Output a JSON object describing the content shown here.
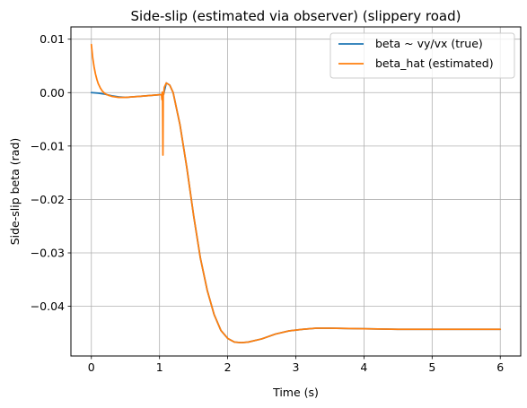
{
  "chart_data": {
    "type": "line",
    "title": "Side-slip (estimated via observer) (slippery road)",
    "xlabel": "Time (s)",
    "ylabel": "Side-slip beta (rad)",
    "xlim": [
      -0.3,
      6.3
    ],
    "ylim": [
      -0.0493,
      0.0123
    ],
    "x_ticks": [
      0,
      1,
      2,
      3,
      4,
      5,
      6
    ],
    "y_ticks": [
      0.01,
      0.0,
      -0.01,
      -0.02,
      -0.03,
      -0.04
    ],
    "x_tick_labels": [
      "0",
      "1",
      "2",
      "3",
      "4",
      "5",
      "6"
    ],
    "y_tick_labels": [
      "0.01",
      "0.00",
      "−0.01",
      "−0.02",
      "−0.03",
      "−0.04"
    ],
    "grid": true,
    "legend_position": "upper-right",
    "series": [
      {
        "name": "beta ~ vy/vx (true)",
        "color": "#1f77b4",
        "points": [
          [
            0.0,
            0.0
          ],
          [
            0.1,
            -0.0001
          ],
          [
            0.2,
            -0.0003
          ],
          [
            0.3,
            -0.0006
          ],
          [
            0.4,
            -0.0008
          ],
          [
            0.5,
            -0.0009
          ],
          [
            0.6,
            -0.0008
          ],
          [
            0.7,
            -0.0007
          ],
          [
            0.8,
            -0.0006
          ],
          [
            0.9,
            -0.0005
          ],
          [
            1.0,
            -0.0004
          ],
          [
            1.04,
            -0.0004
          ],
          [
            1.06,
            -0.0003
          ],
          [
            1.1,
            0.0018
          ],
          [
            1.15,
            0.0014
          ],
          [
            1.2,
            0.0
          ],
          [
            1.3,
            -0.006
          ],
          [
            1.4,
            -0.014
          ],
          [
            1.5,
            -0.023
          ],
          [
            1.6,
            -0.031
          ],
          [
            1.7,
            -0.037
          ],
          [
            1.8,
            -0.0415
          ],
          [
            1.9,
            -0.0445
          ],
          [
            2.0,
            -0.046
          ],
          [
            2.1,
            -0.0467
          ],
          [
            2.2,
            -0.0468
          ],
          [
            2.3,
            -0.0467
          ],
          [
            2.5,
            -0.0461
          ],
          [
            2.7,
            -0.0452
          ],
          [
            2.9,
            -0.0446
          ],
          [
            3.1,
            -0.0443
          ],
          [
            3.3,
            -0.0441
          ],
          [
            3.5,
            -0.0441
          ],
          [
            4.0,
            -0.0442
          ],
          [
            4.5,
            -0.0443
          ],
          [
            5.0,
            -0.0443
          ],
          [
            5.5,
            -0.0443
          ],
          [
            6.0,
            -0.0443
          ]
        ]
      },
      {
        "name": "beta_hat (estimated)",
        "color": "#ff7f0e",
        "points": [
          [
            0.0,
            0.009
          ],
          [
            0.02,
            0.0065
          ],
          [
            0.04,
            0.0048
          ],
          [
            0.06,
            0.0035
          ],
          [
            0.08,
            0.0025
          ],
          [
            0.1,
            0.0017
          ],
          [
            0.13,
            0.0009
          ],
          [
            0.16,
            0.0003
          ],
          [
            0.2,
            -0.0002
          ],
          [
            0.25,
            -0.0005
          ],
          [
            0.3,
            -0.0007
          ],
          [
            0.4,
            -0.0009
          ],
          [
            0.5,
            -0.0009
          ],
          [
            0.6,
            -0.0008
          ],
          [
            0.7,
            -0.0007
          ],
          [
            0.8,
            -0.0006
          ],
          [
            0.9,
            -0.0005
          ],
          [
            1.0,
            -0.0004
          ],
          [
            1.03,
            -0.0004
          ],
          [
            1.035,
            -0.0013
          ],
          [
            1.04,
            0.0001
          ],
          [
            1.045,
            -0.0016
          ],
          [
            1.05,
            -0.0117
          ],
          [
            1.055,
            0.0
          ],
          [
            1.06,
            -0.0004
          ],
          [
            1.07,
            0.001
          ],
          [
            1.1,
            0.0018
          ],
          [
            1.15,
            0.0014
          ],
          [
            1.2,
            0.0
          ],
          [
            1.3,
            -0.006
          ],
          [
            1.4,
            -0.014
          ],
          [
            1.5,
            -0.023
          ],
          [
            1.6,
            -0.031
          ],
          [
            1.7,
            -0.037
          ],
          [
            1.8,
            -0.0415
          ],
          [
            1.9,
            -0.0445
          ],
          [
            2.0,
            -0.046
          ],
          [
            2.1,
            -0.0467
          ],
          [
            2.2,
            -0.0468
          ],
          [
            2.3,
            -0.0467
          ],
          [
            2.5,
            -0.0461
          ],
          [
            2.7,
            -0.0452
          ],
          [
            2.9,
            -0.0446
          ],
          [
            3.1,
            -0.0443
          ],
          [
            3.3,
            -0.0441
          ],
          [
            3.5,
            -0.0441
          ],
          [
            4.0,
            -0.0442
          ],
          [
            4.5,
            -0.0443
          ],
          [
            5.0,
            -0.0443
          ],
          [
            5.5,
            -0.0443
          ],
          [
            6.0,
            -0.0443
          ]
        ]
      }
    ]
  }
}
